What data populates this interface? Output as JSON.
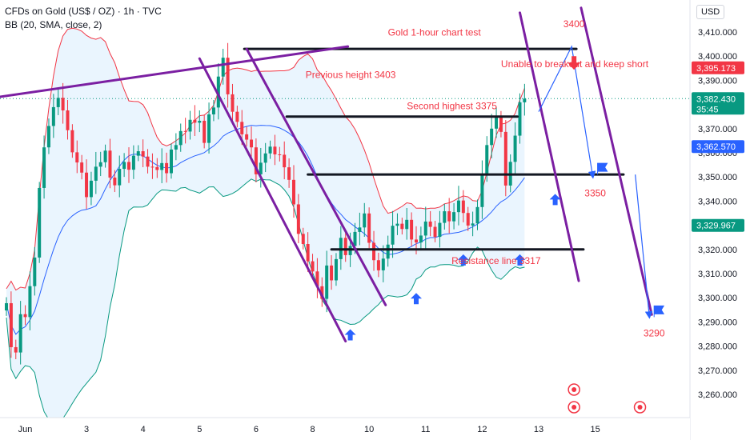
{
  "header": {
    "symbol": "CFDs on Gold (US$ / OZ) · 1h · TVC",
    "indicator": "BB (20, SMA, close, 2)",
    "currency": "USD"
  },
  "colors": {
    "up": "#089981",
    "down": "#f23645",
    "bb_upper": "#f23645",
    "bb_lower": "#089981",
    "bb_basis": "#2962ff",
    "bb_fill": "#e3f2fd",
    "annotation_text": "#f23645",
    "channel": "#7b1fa2",
    "level": "#131722",
    "arrow_up": "#2962ff",
    "arrow_down": "#f23645"
  },
  "chart_data": {
    "type": "candlestick",
    "ylim": [
      3252,
      3417
    ],
    "y_ticks": [
      "3,260.000",
      "3,270.000",
      "3,280.000",
      "3,290.000",
      "3,300.000",
      "3,310.000",
      "3,320.000",
      "3,330.000",
      "3,340.000",
      "3,350.000",
      "3,360.000",
      "3,370.000",
      "3,380.000",
      "3,390.000",
      "3,400.000",
      "3,410.000"
    ],
    "y_tick_values": [
      3260,
      3270,
      3280,
      3290,
      3300,
      3310,
      3320,
      3330,
      3340,
      3350,
      3360,
      3370,
      3380,
      3390,
      3400,
      3410
    ],
    "x_ticks": [
      "Jun",
      "3",
      "4",
      "5",
      "6",
      "8",
      "10",
      "11",
      "12",
      "13",
      "15"
    ],
    "x_tick_index": [
      4,
      17,
      29,
      41,
      53,
      65,
      77,
      89,
      101,
      113,
      125
    ],
    "price_tags": [
      {
        "label": "3,395.173",
        "value": 3395.173,
        "color": "#f23645"
      },
      {
        "label": "3,382.430",
        "sub": "35:45",
        "value": 3382.43,
        "color": "#089981"
      },
      {
        "label": "3,362.570",
        "value": 3362.57,
        "color": "#2962ff"
      },
      {
        "label": "3,329.967",
        "value": 3329.967,
        "color": "#089981"
      }
    ],
    "anchors": [
      [
        0,
        3300
      ],
      [
        1,
        3280
      ],
      [
        2,
        3276
      ],
      [
        3,
        3295
      ],
      [
        4,
        3292
      ],
      [
        5,
        3303
      ],
      [
        6,
        3318
      ],
      [
        7,
        3345
      ],
      [
        8,
        3360
      ],
      [
        9,
        3372
      ],
      [
        10,
        3378
      ],
      [
        11,
        3385
      ],
      [
        12,
        3378
      ],
      [
        13,
        3368
      ],
      [
        14,
        3362
      ],
      [
        15,
        3356
      ],
      [
        16,
        3350
      ],
      [
        17,
        3343
      ],
      [
        18,
        3348
      ],
      [
        19,
        3352
      ],
      [
        20,
        3357
      ],
      [
        21,
        3360
      ],
      [
        22,
        3352
      ],
      [
        23,
        3347
      ],
      [
        24,
        3352
      ],
      [
        25,
        3358
      ],
      [
        26,
        3353
      ],
      [
        27,
        3357
      ],
      [
        28,
        3362
      ],
      [
        29,
        3358
      ],
      [
        30,
        3352
      ],
      [
        31,
        3355
      ],
      [
        32,
        3352
      ],
      [
        33,
        3358
      ],
      [
        34,
        3352
      ],
      [
        35,
        3360
      ],
      [
        36,
        3365
      ],
      [
        37,
        3369
      ],
      [
        38,
        3367
      ],
      [
        39,
        3375
      ],
      [
        40,
        3372
      ],
      [
        41,
        3371
      ],
      [
        42,
        3365
      ],
      [
        43,
        3375
      ],
      [
        44,
        3381
      ],
      [
        45,
        3392
      ],
      [
        46,
        3398
      ],
      [
        47,
        3386
      ],
      [
        48,
        3377
      ],
      [
        49,
        3371
      ],
      [
        50,
        3369
      ],
      [
        51,
        3365
      ],
      [
        52,
        3360
      ],
      [
        53,
        3352
      ],
      [
        54,
        3355
      ],
      [
        55,
        3362
      ],
      [
        56,
        3363
      ],
      [
        57,
        3358
      ],
      [
        58,
        3361
      ],
      [
        59,
        3354
      ],
      [
        60,
        3347
      ],
      [
        61,
        3340
      ],
      [
        62,
        3326
      ],
      [
        63,
        3320
      ],
      [
        64,
        3316
      ],
      [
        65,
        3310
      ],
      [
        66,
        3307
      ],
      [
        67,
        3300
      ],
      [
        68,
        3312
      ],
      [
        69,
        3309
      ],
      [
        70,
        3316
      ],
      [
        71,
        3323
      ],
      [
        72,
        3319
      ],
      [
        73,
        3321
      ],
      [
        74,
        3325
      ],
      [
        75,
        3330
      ],
      [
        76,
        3334
      ],
      [
        77,
        3325
      ],
      [
        78,
        3316
      ],
      [
        79,
        3310
      ],
      [
        80,
        3318
      ],
      [
        81,
        3322
      ],
      [
        82,
        3328
      ],
      [
        83,
        3332
      ],
      [
        84,
        3328
      ],
      [
        85,
        3330
      ],
      [
        86,
        3325
      ],
      [
        87,
        3322
      ],
      [
        88,
        3328
      ],
      [
        89,
        3332
      ],
      [
        90,
        3328
      ],
      [
        91,
        3327
      ],
      [
        92,
        3331
      ],
      [
        93,
        3334
      ],
      [
        94,
        3333
      ],
      [
        95,
        3335
      ],
      [
        96,
        3338
      ],
      [
        97,
        3336
      ],
      [
        98,
        3329
      ],
      [
        99,
        3333
      ],
      [
        100,
        3338
      ],
      [
        101,
        3350
      ],
      [
        102,
        3365
      ],
      [
        103,
        3370
      ],
      [
        104,
        3373
      ],
      [
        105,
        3370
      ],
      [
        106,
        3346
      ],
      [
        107,
        3354
      ],
      [
        108,
        3368
      ],
      [
        109,
        3380
      ],
      [
        110,
        3382.43
      ]
    ],
    "annotations": {
      "title": "Gold 1-hour chart test",
      "prev_height": "Previous height 3403",
      "second_high": "Second highest 3375",
      "unable": "Unable to breakout and keep short",
      "resistance": "Resistance line 3317",
      "l3400": "3400",
      "l3350": "3350",
      "l3290": "3290"
    },
    "horizontal_levels": [
      {
        "from": 50.5,
        "to": 121,
        "value": 3403
      },
      {
        "from": 59.5,
        "to": 108.5,
        "value": 3375
      },
      {
        "from": 64,
        "to": 131,
        "value": 3351
      },
      {
        "from": 69,
        "to": 122.5,
        "value": 3320
      }
    ]
  }
}
